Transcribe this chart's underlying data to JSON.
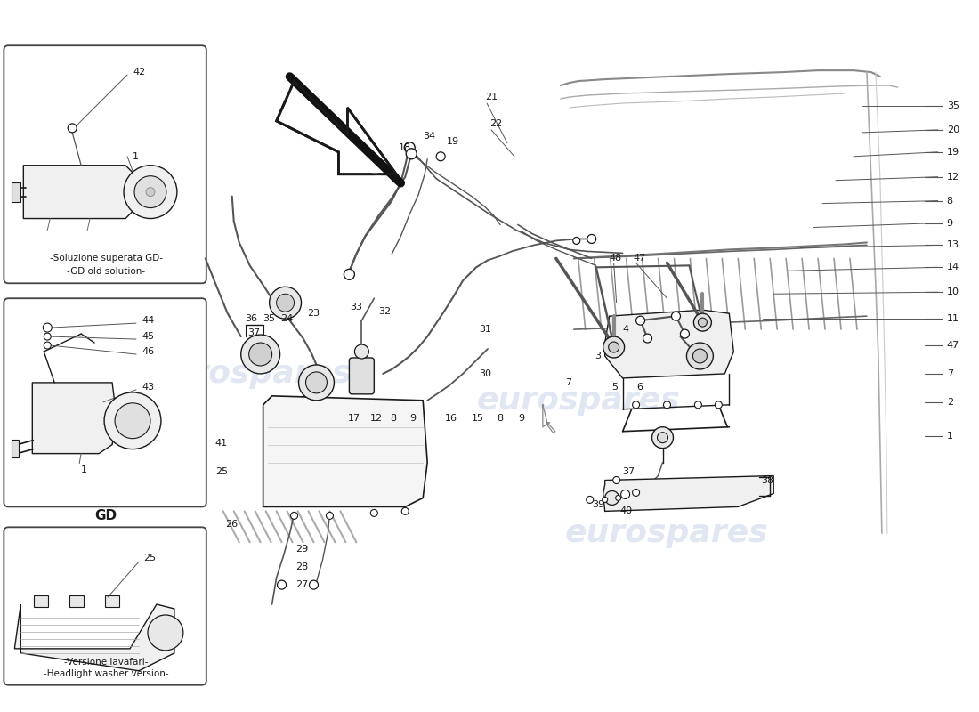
{
  "background_color": "#ffffff",
  "line_color": "#1a1a1a",
  "text_color": "#1a1a1a",
  "watermark_text": "eurospares",
  "watermark_color": "#c8d4e8",
  "fig_width": 11.0,
  "fig_height": 8.0,
  "dpi": 100,
  "box1_label1": "-Soluzione superata GD-",
  "box1_label2": "-GD old solution-",
  "box2_label": "GD",
  "box3_label1": "-Versione lavafari-",
  "box3_label2": "-Headlight washer version-"
}
